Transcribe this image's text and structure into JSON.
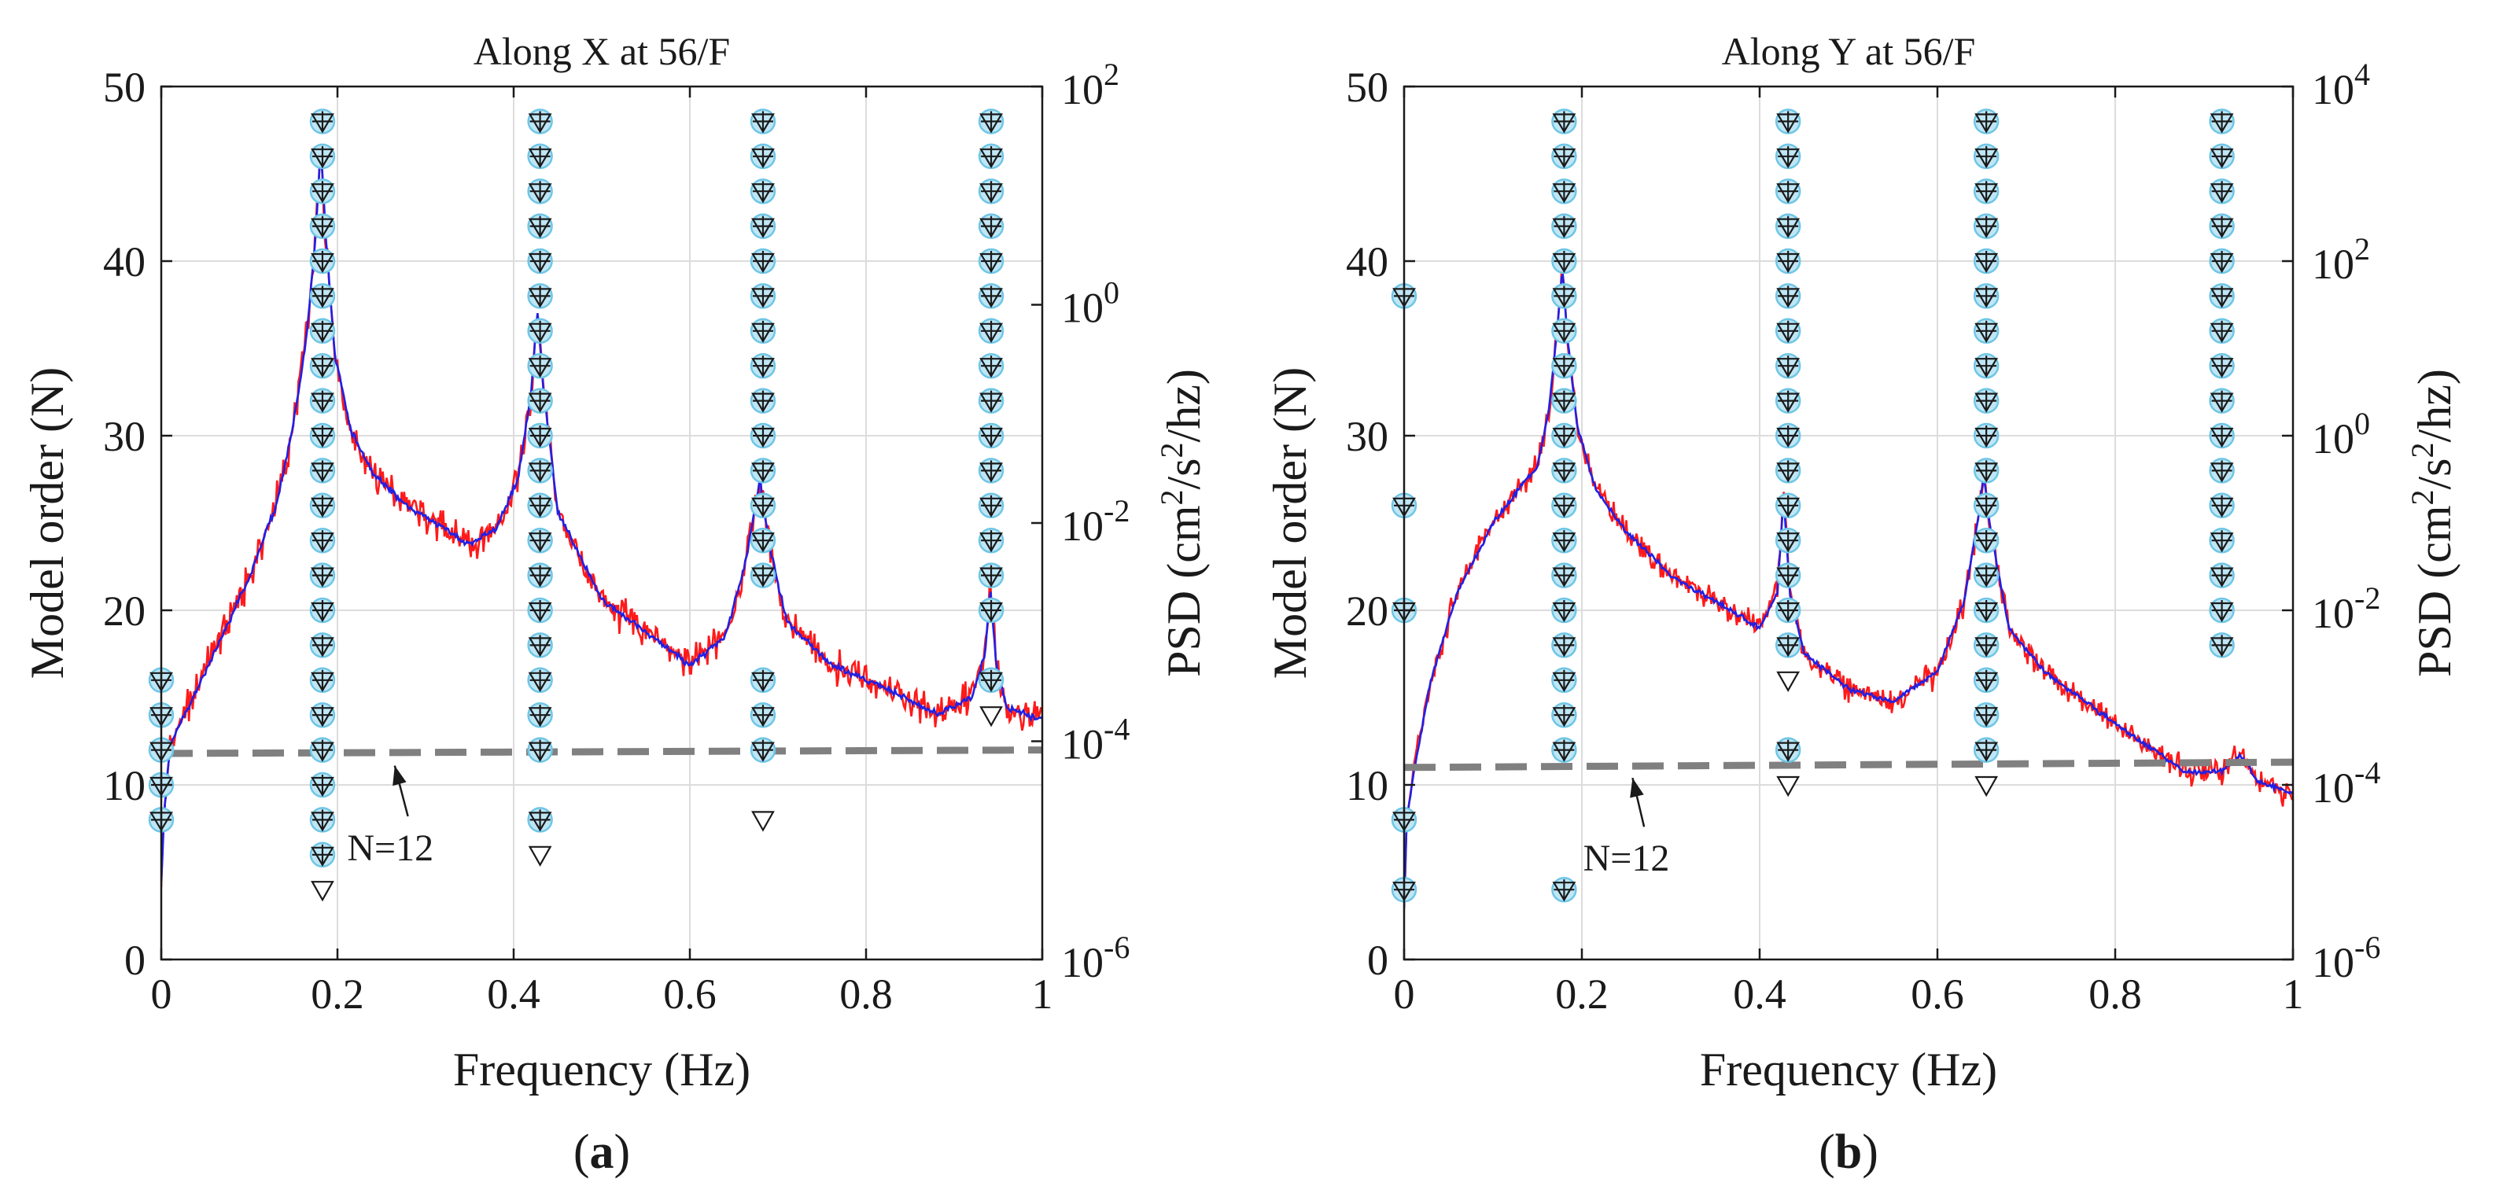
{
  "chart_data": [
    {
      "type": "line",
      "panel_label": {
        "open": "(",
        "letter": "a",
        "close": ")"
      },
      "title": "Along X at 56/F",
      "xlabel": "Frequency (Hz)",
      "ylabel": "Model order (N)",
      "y2label": {
        "prefix": "PSD (cm",
        "sup1": "2",
        "mid": "/s",
        "sup2": "2",
        "suffix": "/hz)"
      },
      "xlim": [
        0,
        1
      ],
      "ylim": [
        0,
        50
      ],
      "y2lim_log10": [
        -6,
        2
      ],
      "grid": true,
      "x_ticks": [
        "0",
        "0.2",
        "0.4",
        "0.6",
        "0.8",
        "1"
      ],
      "y_ticks": [
        "0",
        "10",
        "20",
        "30",
        "40",
        "50"
      ],
      "y2_ticks": [
        {
          "base": "10",
          "exp": "-6"
        },
        {
          "base": "10",
          "exp": "-4"
        },
        {
          "base": "10",
          "exp": "-2"
        },
        {
          "base": "10",
          "exp": "0"
        },
        {
          "base": "10",
          "exp": "2"
        }
      ],
      "psd_anchors": [
        [
          0,
          -5.3
        ],
        [
          0.003,
          -4.7
        ],
        [
          0.01,
          -4.05
        ],
        [
          0.03,
          -3.7
        ],
        [
          0.06,
          -3.2
        ],
        [
          0.1,
          -2.5
        ],
        [
          0.13,
          -1.85
        ],
        [
          0.15,
          -1.1
        ],
        [
          0.165,
          -0.3
        ],
        [
          0.175,
          0.6
        ],
        [
          0.181,
          1.45
        ],
        [
          0.187,
          0.6
        ],
        [
          0.197,
          -0.45
        ],
        [
          0.215,
          -1.15
        ],
        [
          0.24,
          -1.55
        ],
        [
          0.28,
          -1.85
        ],
        [
          0.32,
          -2.05
        ],
        [
          0.35,
          -2.2
        ],
        [
          0.38,
          -2.05
        ],
        [
          0.405,
          -1.6
        ],
        [
          0.42,
          -0.8
        ],
        [
          0.427,
          -0.05
        ],
        [
          0.434,
          -0.8
        ],
        [
          0.45,
          -1.9
        ],
        [
          0.5,
          -2.7
        ],
        [
          0.55,
          -3.0
        ],
        [
          0.6,
          -3.3
        ],
        [
          0.64,
          -3.05
        ],
        [
          0.665,
          -2.3
        ],
        [
          0.675,
          -1.8
        ],
        [
          0.68,
          -1.6
        ],
        [
          0.69,
          -2.2
        ],
        [
          0.71,
          -2.9
        ],
        [
          0.76,
          -3.3
        ],
        [
          0.82,
          -3.5
        ],
        [
          0.88,
          -3.75
        ],
        [
          0.92,
          -3.6
        ],
        [
          0.935,
          -3.2
        ],
        [
          0.941,
          -2.6
        ],
        [
          0.948,
          -3.3
        ],
        [
          0.96,
          -3.7
        ],
        [
          1.0,
          -3.8
        ]
      ],
      "dashed_line": {
        "x": [
          0,
          1
        ],
        "y": [
          11.8,
          12.0
        ]
      },
      "annotation": {
        "text": "N=12",
        "x": 0.26,
        "y": 6.4,
        "arrow_from": [
          0.28,
          8.2
        ],
        "arrow_to": [
          0.265,
          11.1
        ]
      },
      "stable_poles": [
        {
          "f": 0.0,
          "n": [
            8,
            10,
            12,
            14,
            16
          ]
        },
        {
          "f": 0.183,
          "n": [
            6,
            8,
            10,
            12,
            14,
            16,
            18,
            20,
            22,
            24,
            26,
            28,
            30,
            32,
            34,
            36,
            38,
            40,
            42,
            44,
            46,
            48
          ]
        },
        {
          "f": 0.43,
          "n": [
            8,
            12,
            14,
            16,
            18,
            20,
            22,
            24,
            26,
            28,
            30,
            32,
            34,
            36,
            38,
            40,
            42,
            44,
            46,
            48
          ]
        },
        {
          "f": 0.683,
          "n": [
            12,
            14,
            16,
            22,
            24,
            26,
            28,
            30,
            32,
            34,
            36,
            38,
            40,
            42,
            44,
            46,
            48
          ]
        },
        {
          "f": 0.942,
          "n": [
            16,
            20,
            22,
            24,
            26,
            28,
            30,
            32,
            34,
            36,
            38,
            40,
            42,
            44,
            46,
            48
          ]
        }
      ],
      "unstable_poles": [
        {
          "f": 0.183,
          "n": 4
        },
        {
          "f": 0.43,
          "n": 6
        },
        {
          "f": 0.683,
          "n": 8
        },
        {
          "f": 0.942,
          "n": 14
        }
      ]
    },
    {
      "type": "line",
      "panel_label": {
        "open": "(",
        "letter": "b",
        "close": ")"
      },
      "title": "Along Y at 56/F",
      "xlabel": "Frequency (Hz)",
      "ylabel": "Model order (N)",
      "y2label": {
        "prefix": "PSD (cm",
        "sup1": "2",
        "mid": "/s",
        "sup2": "2",
        "suffix": "/hz)"
      },
      "xlim": [
        0,
        1
      ],
      "ylim": [
        0,
        50
      ],
      "y2lim_log10": [
        -6,
        4
      ],
      "grid": true,
      "x_ticks": [
        "0",
        "0.2",
        "0.4",
        "0.6",
        "0.8",
        "1"
      ],
      "y_ticks": [
        "0",
        "10",
        "20",
        "30",
        "40",
        "50"
      ],
      "y2_ticks": [
        {
          "base": "10",
          "exp": "-6"
        },
        {
          "base": "10",
          "exp": "-4"
        },
        {
          "base": "10",
          "exp": "-2"
        },
        {
          "base": "10",
          "exp": "0"
        },
        {
          "base": "10",
          "exp": "2"
        },
        {
          "base": "10",
          "exp": "4"
        }
      ],
      "psd_anchors": [
        [
          0,
          -5.4
        ],
        [
          0.003,
          -4.4
        ],
        [
          0.01,
          -3.9
        ],
        [
          0.03,
          -2.8
        ],
        [
          0.06,
          -1.8
        ],
        [
          0.1,
          -1.0
        ],
        [
          0.13,
          -0.6
        ],
        [
          0.15,
          -0.35
        ],
        [
          0.163,
          0.3
        ],
        [
          0.172,
          1.2
        ],
        [
          0.178,
          1.9
        ],
        [
          0.184,
          1.1
        ],
        [
          0.195,
          0.1
        ],
        [
          0.215,
          -0.6
        ],
        [
          0.25,
          -1.1
        ],
        [
          0.3,
          -1.6
        ],
        [
          0.35,
          -1.9
        ],
        [
          0.4,
          -2.2
        ],
        [
          0.42,
          -1.8
        ],
        [
          0.427,
          -0.7
        ],
        [
          0.434,
          -1.8
        ],
        [
          0.45,
          -2.5
        ],
        [
          0.5,
          -2.9
        ],
        [
          0.55,
          -3.05
        ],
        [
          0.6,
          -2.7
        ],
        [
          0.63,
          -1.9
        ],
        [
          0.645,
          -1.0
        ],
        [
          0.652,
          -0.45
        ],
        [
          0.66,
          -1.1
        ],
        [
          0.68,
          -2.2
        ],
        [
          0.72,
          -2.7
        ],
        [
          0.8,
          -3.3
        ],
        [
          0.88,
          -3.85
        ],
        [
          0.92,
          -3.85
        ],
        [
          0.94,
          -3.65
        ],
        [
          0.96,
          -3.95
        ],
        [
          1.0,
          -4.1
        ]
      ],
      "dashed_line": {
        "x": [
          0,
          1
        ],
        "y": [
          11.0,
          11.3
        ]
      },
      "annotation": {
        "text": "N=12",
        "x": 0.25,
        "y": 5.8,
        "arrow_from": [
          0.27,
          7.6
        ],
        "arrow_to": [
          0.257,
          10.4
        ]
      },
      "stable_poles": [
        {
          "f": 0.0,
          "n": [
            4,
            8,
            20,
            26,
            38
          ]
        },
        {
          "f": 0.18,
          "n": [
            4,
            12,
            14,
            16,
            18,
            20,
            22,
            24,
            26,
            28,
            30,
            32,
            34,
            36,
            38,
            40,
            42,
            44,
            46,
            48
          ]
        },
        {
          "f": 0.432,
          "n": [
            12,
            18,
            20,
            22,
            24,
            26,
            28,
            30,
            32,
            34,
            36,
            38,
            40,
            42,
            44,
            46,
            48
          ]
        },
        {
          "f": 0.655,
          "n": [
            12,
            14,
            16,
            18,
            20,
            22,
            24,
            26,
            28,
            30,
            32,
            34,
            36,
            38,
            40,
            42,
            44,
            46,
            48
          ]
        },
        {
          "f": 0.92,
          "n": [
            18,
            20,
            22,
            24,
            26,
            28,
            30,
            32,
            34,
            36,
            38,
            40,
            42,
            44,
            46,
            48
          ]
        }
      ],
      "unstable_poles": [
        {
          "f": 0.432,
          "n": 10
        },
        {
          "f": 0.432,
          "n": 16
        },
        {
          "f": 0.655,
          "n": 10
        }
      ]
    }
  ]
}
